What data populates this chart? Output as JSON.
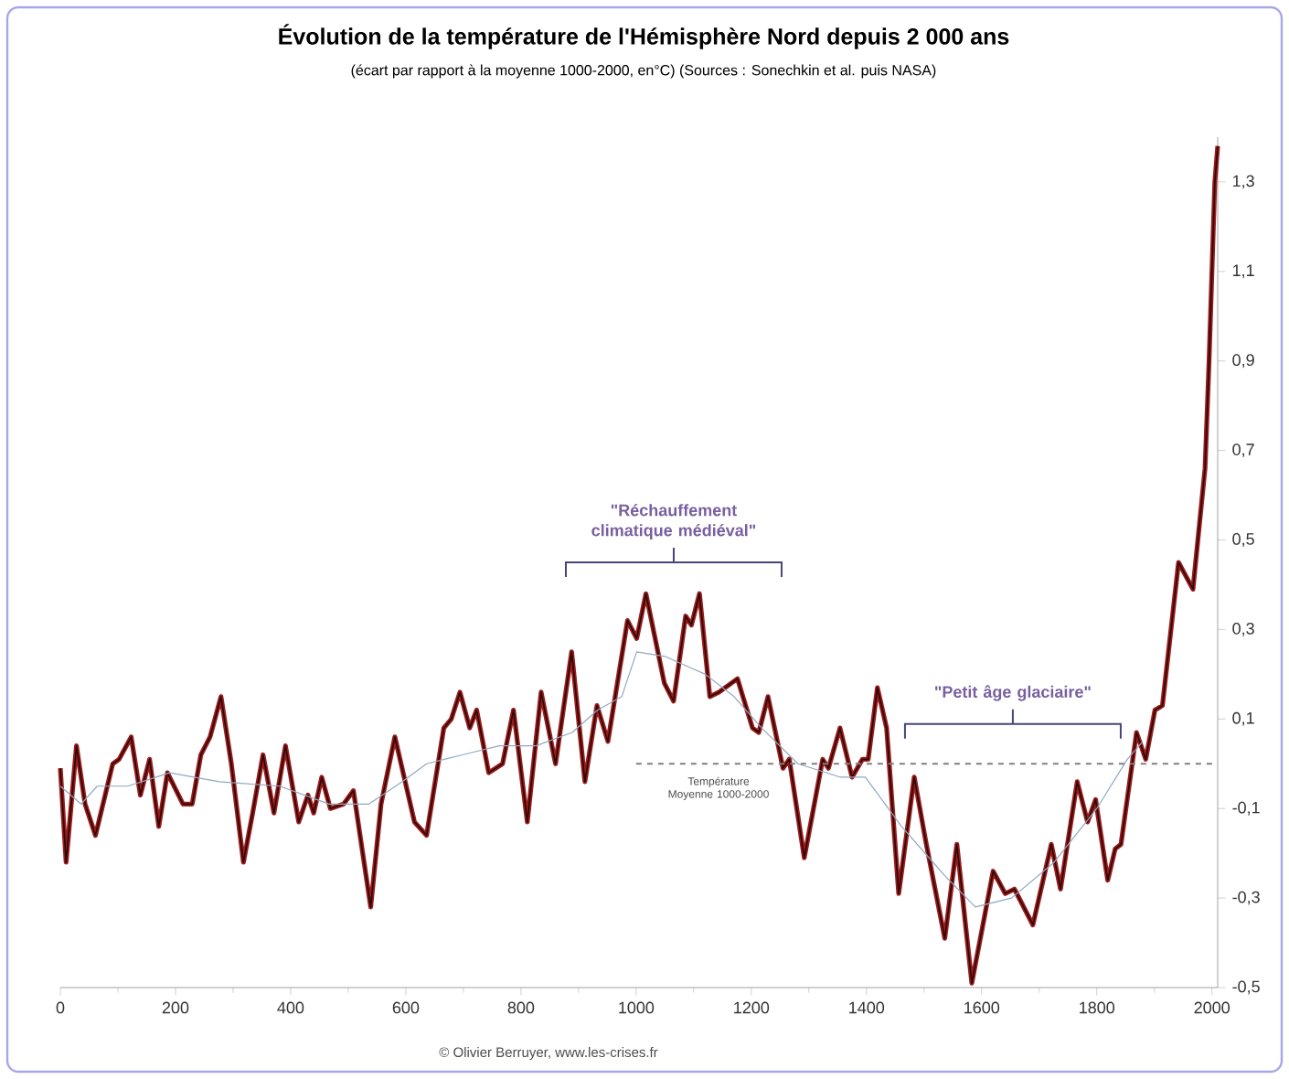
{
  "chart_data": {
    "type": "line",
    "title": "Évolution de la température de l'Hémisphère Nord depuis 2 000 ans",
    "subtitle": "(écart par rapport à la moyenne 1000-2000, en°C) (Sources : Sonechkin et al. puis NASA)",
    "xlim": [
      0,
      2010
    ],
    "xticks": [
      0,
      200,
      400,
      600,
      800,
      1000,
      1200,
      1400,
      1600,
      1800,
      2000
    ],
    "ylim": [
      -0.5,
      1.4
    ],
    "yticks": [
      {
        "value": -0.5,
        "label": "-0,5"
      },
      {
        "value": -0.3,
        "label": "-0,3"
      },
      {
        "value": -0.1,
        "label": "-0,1"
      },
      {
        "value": 0.1,
        "label": "0,1"
      },
      {
        "value": 0.3,
        "label": "0,3"
      },
      {
        "value": 0.5,
        "label": "0,5"
      },
      {
        "value": 0.7,
        "label": "0,7"
      },
      {
        "value": 0.9,
        "label": "0,9"
      },
      {
        "value": 1.1,
        "label": "1,1"
      },
      {
        "value": 1.3,
        "label": "1,3"
      }
    ],
    "grid": false,
    "series": [
      {
        "color": "#9b1b1b",
        "x": [
          0,
          10,
          28,
          43,
          61,
          91,
          102,
          123,
          139,
          155,
          171,
          186,
          213,
          229,
          244,
          260,
          279,
          297,
          318,
          334,
          352,
          371,
          391,
          414,
          430,
          440,
          454,
          469,
          492,
          509,
          539,
          557,
          581,
          615,
          636,
          666,
          679,
          694,
          711,
          723,
          744,
          768,
          787,
          811,
          835,
          860,
          888,
          911,
          932,
          951,
          985,
          1001,
          1017,
          1049,
          1065,
          1086,
          1096,
          1110,
          1128,
          1144,
          1176,
          1202,
          1213,
          1229,
          1255,
          1266,
          1292,
          1324,
          1334,
          1354,
          1375,
          1393,
          1403,
          1419,
          1435,
          1456,
          1483,
          1504,
          1536,
          1557,
          1583,
          1620,
          1641,
          1657,
          1689,
          1721,
          1737,
          1766,
          1784,
          1798,
          1819,
          1832,
          1842,
          1869,
          1885,
          1901,
          1914,
          1942,
          1967,
          1988,
          1995,
          2005,
          2010
        ],
        "values": [
          -0.01,
          -0.22,
          0.04,
          -0.09,
          -0.16,
          0.0,
          0.01,
          0.06,
          -0.07,
          0.01,
          -0.14,
          -0.02,
          -0.09,
          -0.09,
          0.02,
          0.06,
          0.15,
          0.0,
          -0.22,
          -0.11,
          0.02,
          -0.11,
          0.04,
          -0.13,
          -0.07,
          -0.11,
          -0.03,
          -0.1,
          -0.09,
          -0.06,
          -0.32,
          -0.09,
          0.06,
          -0.13,
          -0.16,
          0.08,
          0.1,
          0.16,
          0.08,
          0.12,
          -0.02,
          0.0,
          0.12,
          -0.13,
          0.16,
          0.0,
          0.25,
          -0.04,
          0.13,
          0.05,
          0.32,
          0.28,
          0.38,
          0.18,
          0.14,
          0.33,
          0.31,
          0.38,
          0.15,
          0.16,
          0.19,
          0.08,
          0.07,
          0.15,
          -0.01,
          0.01,
          -0.21,
          0.01,
          -0.01,
          0.08,
          -0.03,
          0.01,
          0.01,
          0.17,
          0.08,
          -0.29,
          -0.03,
          -0.18,
          -0.39,
          -0.18,
          -0.49,
          -0.24,
          -0.29,
          -0.28,
          -0.36,
          -0.18,
          -0.28,
          -0.04,
          -0.13,
          -0.08,
          -0.26,
          -0.19,
          -0.18,
          0.07,
          0.01,
          0.12,
          0.13,
          0.45,
          0.39,
          0.66,
          0.9,
          1.3,
          1.38
        ]
      },
      {
        "color": "#8fa8c0",
        "x": [
          0,
          36,
          64,
          117,
          190,
          276,
          381,
          467,
          536,
          594,
          636,
          667,
          762,
          826,
          889,
          933,
          975,
          1001,
          1050,
          1120,
          1170,
          1218,
          1281,
          1355,
          1398,
          1461,
          1536,
          1589,
          1652,
          1726,
          1800,
          1853,
          1880
        ],
        "values": [
          -0.05,
          -0.09,
          -0.05,
          -0.05,
          -0.02,
          -0.04,
          -0.05,
          -0.09,
          -0.09,
          -0.04,
          0.0,
          0.01,
          0.04,
          0.04,
          0.07,
          0.12,
          0.15,
          0.25,
          0.24,
          0.2,
          0.15,
          0.08,
          0.0,
          -0.03,
          -0.03,
          -0.14,
          -0.25,
          -0.32,
          -0.3,
          -0.22,
          -0.1,
          0.01,
          0.05
        ]
      },
      {
        "name": "Température Moyenne 1000-2000",
        "color": "#7f7f7f",
        "line_style": "dashed",
        "x": [
          1000,
          2010
        ],
        "values": [
          0,
          0
        ]
      }
    ],
    "annotations": [
      "\"Réchauffement climatique médiéval\"",
      "\"Petit âge glaciaire\"",
      "© Olivier Berruyer, www.les-crises.fr"
    ]
  }
}
